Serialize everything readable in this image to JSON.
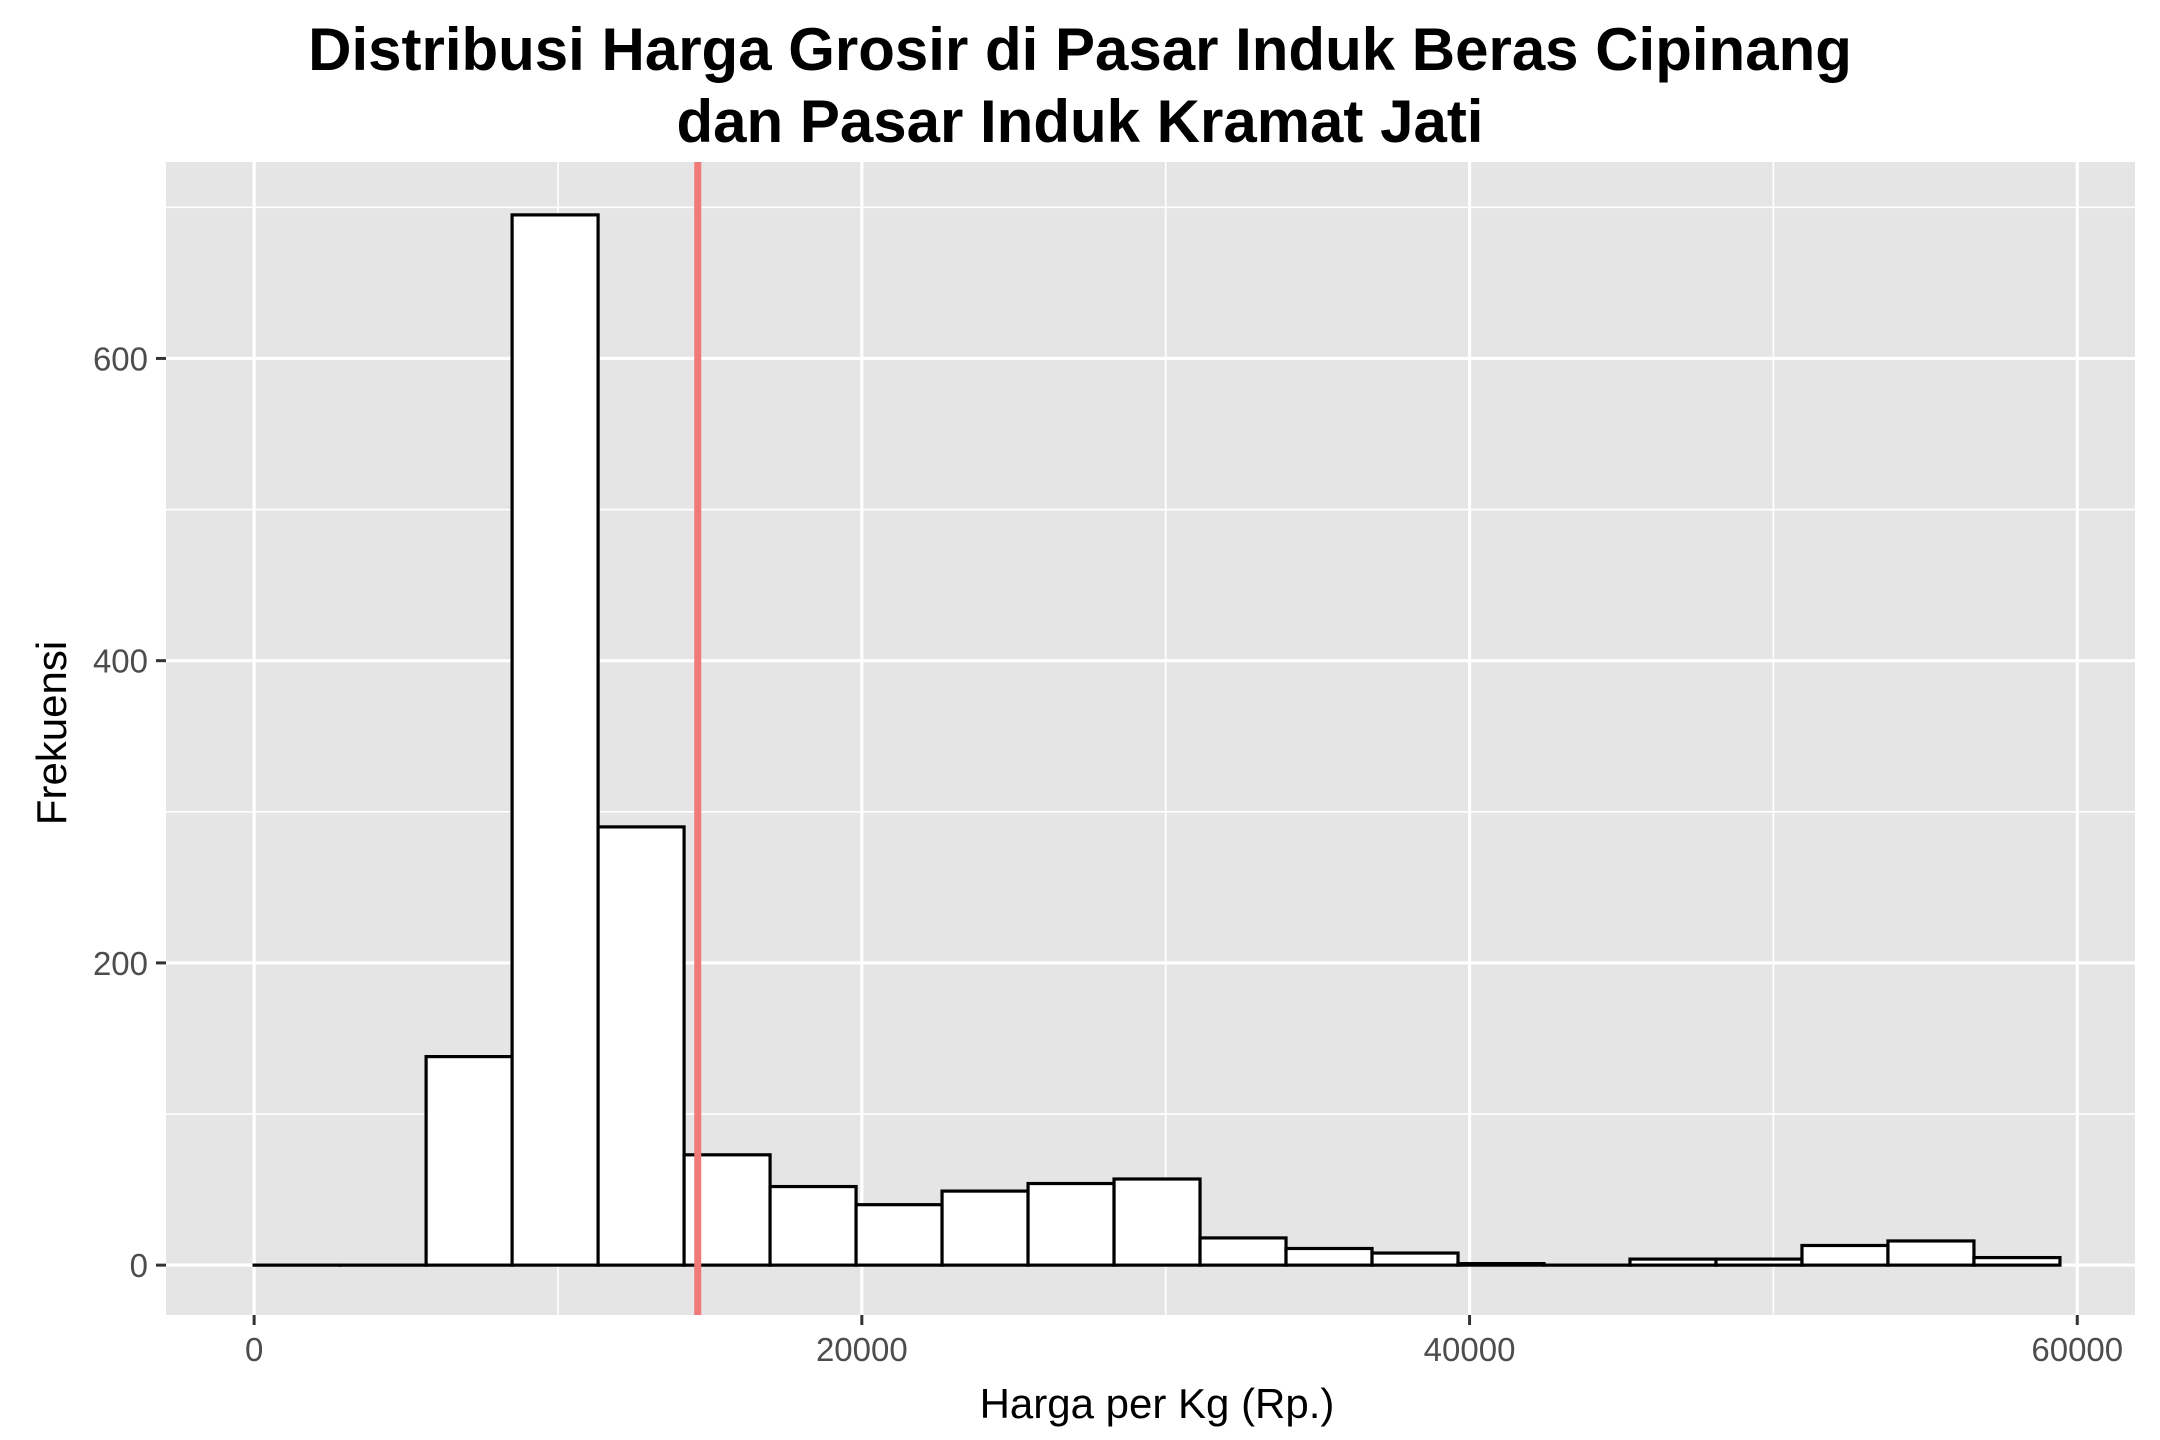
{
  "chart_data": {
    "type": "bar",
    "title_lines": [
      "Distribusi Harga Grosir di Pasar Induk Beras Cipinang",
      "dan Pasar Induk Kramat Jati"
    ],
    "xlabel": "Harga per Kg (Rp.)",
    "ylabel": "Frekuensi",
    "xlim": [
      -2900,
      61900
    ],
    "ylim": [
      -33,
      730
    ],
    "x_ticks": [
      0,
      20000,
      40000,
      60000
    ],
    "y_ticks": [
      0,
      200,
      400,
      600
    ],
    "grid": true,
    "bin_width": 2830,
    "bins": [
      {
        "x0": 0,
        "x1": 2830,
        "count": 0
      },
      {
        "x0": 2830,
        "x1": 5660,
        "count": 0
      },
      {
        "x0": 5660,
        "x1": 8490,
        "count": 138
      },
      {
        "x0": 8490,
        "x1": 11320,
        "count": 695
      },
      {
        "x0": 11320,
        "x1": 14150,
        "count": 290
      },
      {
        "x0": 14150,
        "x1": 16980,
        "count": 73
      },
      {
        "x0": 16980,
        "x1": 19810,
        "count": 52
      },
      {
        "x0": 19810,
        "x1": 22640,
        "count": 40
      },
      {
        "x0": 22640,
        "x1": 25470,
        "count": 49
      },
      {
        "x0": 25470,
        "x1": 28300,
        "count": 54
      },
      {
        "x0": 28300,
        "x1": 31130,
        "count": 57
      },
      {
        "x0": 31130,
        "x1": 33960,
        "count": 18
      },
      {
        "x0": 33960,
        "x1": 36790,
        "count": 11
      },
      {
        "x0": 36790,
        "x1": 39620,
        "count": 8
      },
      {
        "x0": 39620,
        "x1": 42450,
        "count": 1
      },
      {
        "x0": 42450,
        "x1": 45280,
        "count": 0
      },
      {
        "x0": 45280,
        "x1": 48110,
        "count": 4
      },
      {
        "x0": 48110,
        "x1": 50940,
        "count": 4
      },
      {
        "x0": 50940,
        "x1": 53770,
        "count": 13
      },
      {
        "x0": 53770,
        "x1": 56600,
        "count": 16
      },
      {
        "x0": 56600,
        "x1": 59430,
        "count": 5
      }
    ],
    "vline": {
      "x": 14600,
      "color": "#F07A7A"
    },
    "colors": {
      "panel": "#E5E5E5",
      "grid": "#FFFFFF",
      "bar_fill": "#FFFFFF",
      "bar_stroke": "#000000",
      "tick_text": "#4D4D4D",
      "axis_tick": "#333333"
    }
  }
}
